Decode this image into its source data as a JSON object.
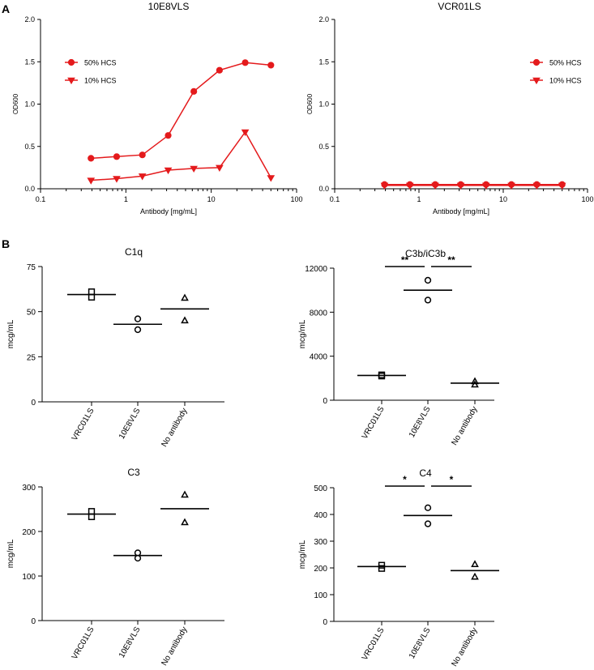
{
  "panel_labels": {
    "a": "A",
    "b": "B"
  },
  "chart_data": [
    {
      "id": "od_10e8vls",
      "type": "line",
      "title": "10E8VLS",
      "xlabel": "Antibody [mg/mL]",
      "ylabel": "OD600",
      "xscale": "log",
      "xlim": [
        0.1,
        100
      ],
      "ylim": [
        0,
        2.0
      ],
      "xticks": [
        "0.1",
        "1",
        "10",
        "100"
      ],
      "yticks": [
        "0.0",
        "0.5",
        "1.0",
        "1.5",
        "2.0"
      ],
      "legend_position": "upper-left",
      "x": [
        0.39,
        0.78,
        1.56,
        3.13,
        6.25,
        12.5,
        25,
        50
      ],
      "series": [
        {
          "name": "50% HCS",
          "marker": "circle",
          "color": "#e41a1c",
          "values": [
            0.36,
            0.38,
            0.4,
            0.63,
            1.15,
            1.4,
            1.49,
            1.46
          ]
        },
        {
          "name": "10% HCS",
          "marker": "triangle-down",
          "color": "#e41a1c",
          "values": [
            0.1,
            0.12,
            0.15,
            0.22,
            0.24,
            0.25,
            0.67,
            0.13
          ]
        }
      ]
    },
    {
      "id": "od_vcr01ls",
      "type": "line",
      "title": "VCR01LS",
      "xlabel": "Antibody [mg/mL]",
      "ylabel": "OD600",
      "xscale": "log",
      "xlim": [
        0.1,
        100
      ],
      "ylim": [
        0,
        2.0
      ],
      "xticks": [
        "0.1",
        "1",
        "10",
        "100"
      ],
      "yticks": [
        "0.0",
        "0.5",
        "1.0",
        "1.5",
        "2.0"
      ],
      "legend_position": "upper-right",
      "x": [
        0.39,
        0.78,
        1.56,
        3.13,
        6.25,
        12.5,
        25,
        50
      ],
      "series": [
        {
          "name": "50% HCS",
          "marker": "circle",
          "color": "#e41a1c",
          "values": [
            0.05,
            0.05,
            0.05,
            0.05,
            0.05,
            0.05,
            0.05,
            0.05
          ]
        },
        {
          "name": "10% HCS",
          "marker": "triangle-down",
          "color": "#e41a1c",
          "values": [
            0.04,
            0.04,
            0.04,
            0.04,
            0.04,
            0.04,
            0.04,
            0.04
          ]
        }
      ]
    },
    {
      "id": "c1q",
      "type": "scatter",
      "title": "C1q",
      "ylabel": "mcg/mL",
      "ylim": [
        0,
        75
      ],
      "yticks": [
        0,
        25,
        50,
        75
      ],
      "categories": [
        "VRC01LS",
        "10E8VLS",
        "No antibody"
      ],
      "markers": [
        "square",
        "circle",
        "triangle"
      ],
      "points": [
        [
          61,
          58
        ],
        [
          46,
          40
        ],
        [
          57.5,
          45
        ]
      ],
      "means": [
        59.5,
        43,
        51.5
      ],
      "significance": []
    },
    {
      "id": "c3b_ic3b",
      "type": "scatter",
      "title": "C3b/iC3b",
      "ylabel": "mcg/mL",
      "ylim": [
        0,
        12000
      ],
      "yticks": [
        0,
        4000,
        8000,
        12000
      ],
      "categories": [
        "VRC01LS",
        "10E8VLS",
        "No antibody"
      ],
      "markers": [
        "square",
        "circle",
        "triangle"
      ],
      "points": [
        [
          2300,
          2200
        ],
        [
          10900,
          9100
        ],
        [
          1700,
          1400
        ]
      ],
      "means": [
        2250,
        10000,
        1550
      ],
      "significance": [
        {
          "from": 0,
          "to": 1,
          "label": "**"
        },
        {
          "from": 1,
          "to": 2,
          "label": "**"
        }
      ]
    },
    {
      "id": "c3",
      "type": "scatter",
      "title": "C3",
      "ylabel": "mcg/mL",
      "ylim": [
        0,
        300
      ],
      "yticks": [
        0,
        100,
        200,
        300
      ],
      "categories": [
        "VRC01LS",
        "10E8VLS",
        "No antibody"
      ],
      "markers": [
        "square",
        "circle",
        "triangle"
      ],
      "points": [
        [
          245,
          233
        ],
        [
          152,
          140
        ],
        [
          282,
          220
        ]
      ],
      "means": [
        239,
        146,
        251
      ],
      "significance": []
    },
    {
      "id": "c4",
      "type": "scatter",
      "title": "C4",
      "ylabel": "mcg/mL",
      "ylim": [
        0,
        500
      ],
      "yticks": [
        0,
        100,
        200,
        300,
        400,
        500
      ],
      "categories": [
        "VRC01LS",
        "10E8VLS",
        "No antibody"
      ],
      "markers": [
        "square",
        "circle",
        "triangle"
      ],
      "points": [
        [
          210,
          198
        ],
        [
          425,
          365
        ],
        [
          213,
          166
        ]
      ],
      "means": [
        205,
        396,
        190
      ],
      "significance": [
        {
          "from": 0,
          "to": 1,
          "label": "*"
        },
        {
          "from": 1,
          "to": 2,
          "label": "*"
        }
      ]
    }
  ]
}
